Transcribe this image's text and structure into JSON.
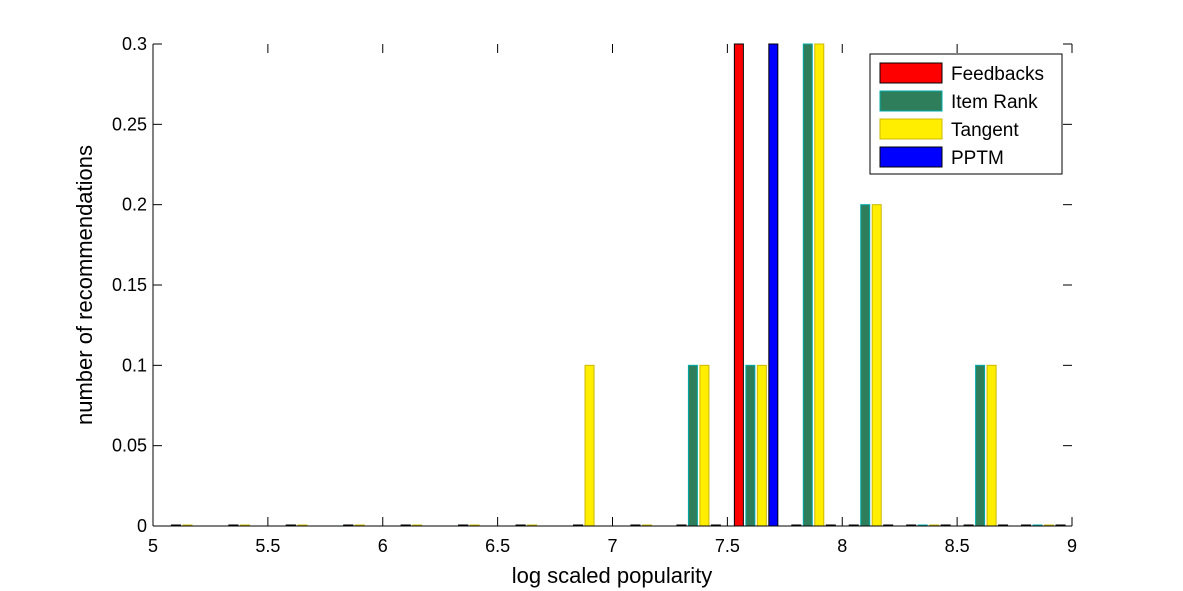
{
  "chart_data": {
    "type": "bar",
    "title": "",
    "xlabel": "log scaled popularity",
    "ylabel": "number of recommendations",
    "xlim": [
      5,
      9
    ],
    "ylim": [
      0,
      0.3
    ],
    "xticks": [
      "5",
      "5.5",
      "6",
      "6.5",
      "7",
      "7.5",
      "8",
      "8.5",
      "9"
    ],
    "yticks": [
      "0",
      "0.05",
      "0.1",
      "0.15",
      "0.2",
      "0.25",
      "0.3"
    ],
    "grid": false,
    "legend_position": "top-right",
    "series": [
      {
        "name": "Feedbacks",
        "color": "#ff0000",
        "edge": "#000000",
        "points": [
          [
            5.1,
            0
          ],
          [
            5.35,
            0
          ],
          [
            5.6,
            0
          ],
          [
            5.85,
            0
          ],
          [
            6.1,
            0
          ],
          [
            6.35,
            0
          ],
          [
            6.6,
            0
          ],
          [
            6.85,
            0
          ],
          [
            7.1,
            0
          ],
          [
            7.3,
            0
          ],
          [
            7.55,
            0.3
          ],
          [
            7.8,
            0
          ],
          [
            8.05,
            0
          ],
          [
            8.3,
            0
          ],
          [
            8.55,
            0
          ],
          [
            8.8,
            0
          ]
        ]
      },
      {
        "name": "Item Rank",
        "color": "#2e7d5b",
        "edge": "#00aaaa",
        "points": [
          [
            5.1,
            0
          ],
          [
            5.35,
            0
          ],
          [
            5.6,
            0
          ],
          [
            5.85,
            0
          ],
          [
            6.1,
            0
          ],
          [
            6.35,
            0
          ],
          [
            6.6,
            0
          ],
          [
            6.85,
            0
          ],
          [
            7.1,
            0
          ],
          [
            7.35,
            0.1
          ],
          [
            7.6,
            0.1
          ],
          [
            7.85,
            0.3
          ],
          [
            8.1,
            0.2
          ],
          [
            8.35,
            0
          ],
          [
            8.6,
            0.1
          ],
          [
            8.85,
            0
          ]
        ]
      },
      {
        "name": "Tangent",
        "color": "#ffee00",
        "edge": "#ccb800",
        "points": [
          [
            5.15,
            0
          ],
          [
            5.4,
            0
          ],
          [
            5.65,
            0
          ],
          [
            5.9,
            0
          ],
          [
            6.15,
            0
          ],
          [
            6.4,
            0
          ],
          [
            6.65,
            0
          ],
          [
            6.9,
            0.1
          ],
          [
            7.15,
            0
          ],
          [
            7.4,
            0.1
          ],
          [
            7.65,
            0.1
          ],
          [
            7.9,
            0.3
          ],
          [
            8.15,
            0.2
          ],
          [
            8.4,
            0
          ],
          [
            8.65,
            0.1
          ],
          [
            8.9,
            0
          ]
        ]
      },
      {
        "name": "PPTM",
        "color": "#0000ff",
        "edge": "#000000",
        "points": [
          [
            5.1,
            0
          ],
          [
            5.35,
            0
          ],
          [
            5.6,
            0
          ],
          [
            5.85,
            0
          ],
          [
            6.1,
            0
          ],
          [
            6.35,
            0
          ],
          [
            6.6,
            0
          ],
          [
            6.85,
            0
          ],
          [
            7.1,
            0
          ],
          [
            7.45,
            0
          ],
          [
            7.7,
            0.3
          ],
          [
            7.95,
            0
          ],
          [
            8.2,
            0
          ],
          [
            8.45,
            0
          ],
          [
            8.7,
            0
          ],
          [
            8.95,
            0
          ]
        ]
      }
    ]
  }
}
